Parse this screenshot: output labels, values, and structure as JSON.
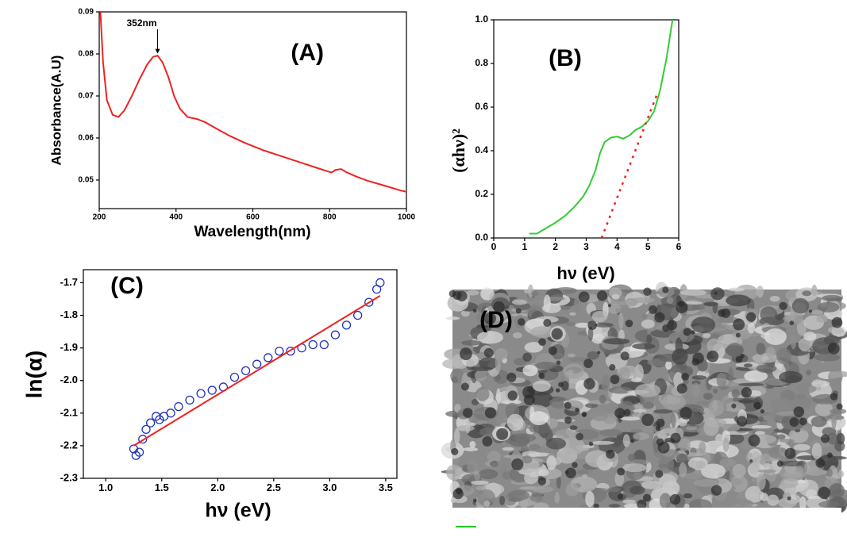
{
  "chart_data": [
    {
      "type": "line",
      "title": "(A)",
      "xlabel": "Wavelength(nm)",
      "ylabel": "Absorbance(A.U)",
      "xlim": [
        200,
        1000
      ],
      "ylim": [
        0.0432,
        0.09
      ],
      "xticks": [
        200,
        400,
        600,
        800,
        1000
      ],
      "yticks": [
        0.05,
        0.06,
        0.07,
        0.08,
        0.09
      ],
      "annotation": {
        "text": "352nm",
        "x": 352,
        "y": 0.0795
      },
      "series": [
        {
          "color": "#ee2222",
          "x": [
            203,
            210,
            220,
            235,
            250,
            265,
            285,
            305,
            325,
            340,
            352,
            365,
            380,
            395,
            410,
            430,
            455,
            475,
            500,
            540,
            580,
            630,
            680,
            730,
            770,
            790,
            805,
            815,
            830,
            845,
            870,
            900,
            930,
            960,
            985,
            1000
          ],
          "values": [
            0.09,
            0.078,
            0.069,
            0.0655,
            0.065,
            0.0665,
            0.07,
            0.074,
            0.0775,
            0.0793,
            0.0796,
            0.078,
            0.0745,
            0.07,
            0.067,
            0.065,
            0.0645,
            0.0638,
            0.0625,
            0.0605,
            0.0588,
            0.057,
            0.0555,
            0.054,
            0.0528,
            0.0522,
            0.0518,
            0.0524,
            0.0526,
            0.0518,
            0.0508,
            0.0498,
            0.049,
            0.0482,
            0.0475,
            0.0472
          ]
        }
      ]
    },
    {
      "type": "line",
      "title": "(B)",
      "xlabel": "hν (eV)",
      "ylabel": "(αhν)²",
      "xlim": [
        0,
        6
      ],
      "ylim": [
        0,
        1
      ],
      "xticks": [
        0,
        1,
        2,
        3,
        4,
        5,
        6
      ],
      "yticks": [
        {
          "value": 0,
          "label": "0.0"
        },
        0.2,
        0.4,
        0.6,
        0.8,
        {
          "value": 1,
          "label": "1.0"
        }
      ],
      "series": [
        {
          "color": "#33cc33",
          "x": [
            1.15,
            1.4,
            1.7,
            2,
            2.3,
            2.6,
            2.9,
            3.1,
            3.3,
            3.45,
            3.6,
            3.8,
            4,
            4.2,
            4.4,
            4.6,
            4.8,
            5,
            5.2,
            5.4,
            5.6,
            5.8
          ],
          "values": [
            0.02,
            0.02,
            0.045,
            0.07,
            0.1,
            0.14,
            0.19,
            0.24,
            0.31,
            0.39,
            0.44,
            0.46,
            0.465,
            0.455,
            0.47,
            0.495,
            0.51,
            0.535,
            0.58,
            0.68,
            0.82,
            1.0
          ]
        },
        {
          "color": "#ee2222",
          "dash": true,
          "x": [
            3.5,
            5.3
          ],
          "values": [
            0,
            0.66
          ]
        }
      ]
    },
    {
      "type": "scatter",
      "title": "(C)",
      "xlabel": "hν (eV)",
      "ylabel": "ln(α)",
      "xlim": [
        0.8,
        3.6
      ],
      "ylim": [
        -2.3,
        -1.66
      ],
      "xticks": [
        {
          "value": 1,
          "label": "1.0"
        },
        1.5,
        {
          "value": 2,
          "label": "2.0"
        },
        2.5,
        {
          "value": 3,
          "label": "3.0"
        },
        3.5
      ],
      "yticks": [
        -2.3,
        -2.2,
        -2.1,
        {
          "value": -2,
          "label": "-2.0"
        },
        -1.9,
        -1.8,
        -1.7
      ],
      "series": [
        {
          "type": "scatter",
          "color": "#2233bb",
          "x": [
            1.25,
            1.27,
            1.3,
            1.33,
            1.36,
            1.4,
            1.45,
            1.48,
            1.52,
            1.58,
            1.65,
            1.75,
            1.85,
            1.95,
            2.05,
            2.15,
            2.25,
            2.35,
            2.45,
            2.55,
            2.65,
            2.75,
            2.85,
            2.95,
            3.05,
            3.15,
            3.25,
            3.35,
            3.42,
            3.45
          ],
          "values": [
            -2.21,
            -2.23,
            -2.22,
            -2.18,
            -2.15,
            -2.13,
            -2.11,
            -2.12,
            -2.11,
            -2.1,
            -2.08,
            -2.06,
            -2.04,
            -2.03,
            -2.02,
            -1.99,
            -1.97,
            -1.95,
            -1.93,
            -1.91,
            -1.91,
            -1.9,
            -1.89,
            -1.89,
            -1.86,
            -1.83,
            -1.8,
            -1.76,
            -1.72,
            -1.7
          ]
        },
        {
          "type": "line",
          "color": "#ee2222",
          "x": [
            1.25,
            3.45
          ],
          "values": [
            -2.2,
            -1.74
          ]
        }
      ]
    },
    {
      "type": "image",
      "title": "(D)"
    }
  ]
}
